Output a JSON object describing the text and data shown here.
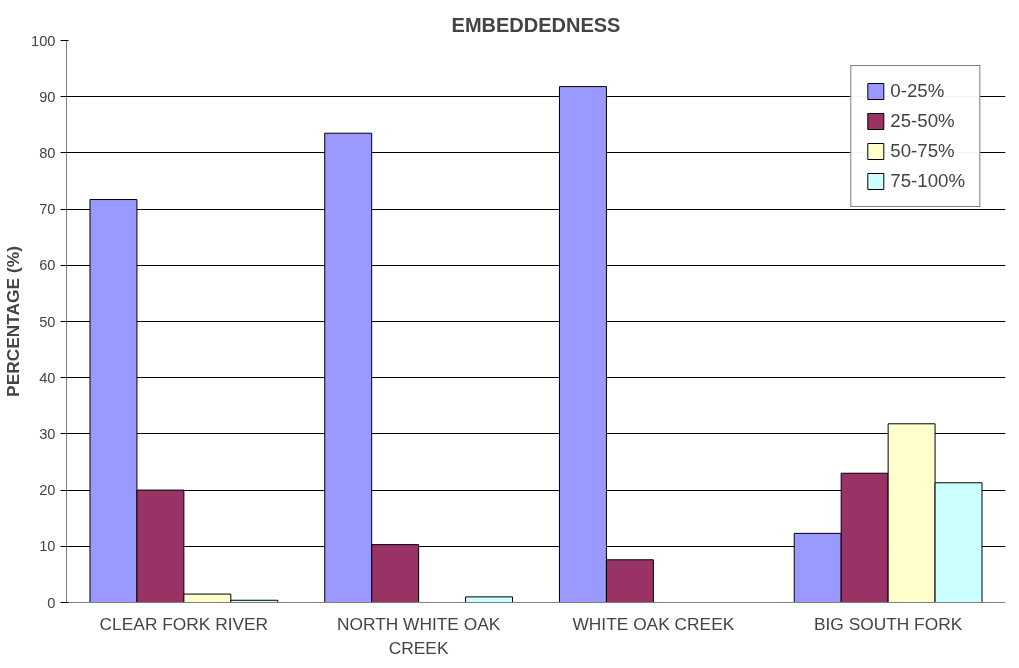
{
  "chart_data": {
    "type": "bar",
    "title": "EMBEDDEDNESS",
    "ylabel": "PERCENTAGE (%)",
    "categories": [
      "CLEAR FORK RIVER",
      "NORTH WHITE OAK CREEK",
      "WHITE OAK CREEK",
      "BIG SOUTH FORK"
    ],
    "series": [
      {
        "name": "0-25%",
        "color": "#9999ff",
        "values": [
          71.7,
          83.5,
          91.8,
          12.3
        ]
      },
      {
        "name": "25-50%",
        "color": "#993366",
        "values": [
          20,
          10.3,
          7.6,
          23
        ]
      },
      {
        "name": "50-75%",
        "color": "#ffffcc",
        "values": [
          1.5,
          null,
          null,
          31.8
        ]
      },
      {
        "name": "75-100%",
        "color": "#ccffff",
        "values": [
          0.4,
          1,
          null,
          21.3
        ]
      }
    ],
    "ylim": [
      0,
      100
    ],
    "yticks": [
      0,
      10,
      20,
      30,
      40,
      50,
      60,
      70,
      80,
      90,
      100
    ],
    "grid": "y",
    "legend": "top right"
  }
}
